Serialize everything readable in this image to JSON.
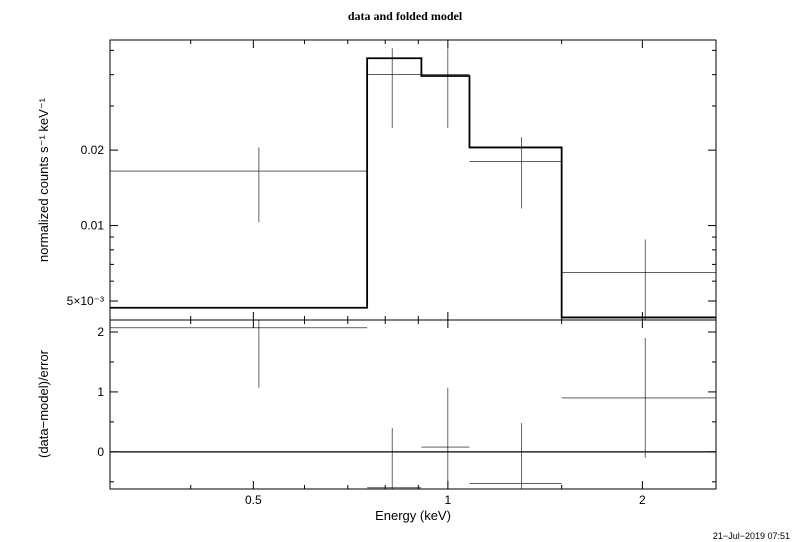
{
  "chart_data": [
    {
      "type": "line",
      "panel": "top",
      "title": "data and folded model",
      "xlabel": "",
      "ylabel": "normalized counts s⁻¹ keV⁻¹",
      "xscale": "log",
      "yscale": "log",
      "xlim": [
        0.3,
        2.6
      ],
      "ylim": [
        0.0042,
        0.055
      ],
      "yticks": [
        {
          "value": 0.005,
          "label": "5×10⁻³"
        },
        {
          "value": 0.01,
          "label": "0.01"
        },
        {
          "value": 0.02,
          "label": "0.02"
        }
      ],
      "series": [
        {
          "style": "data-crosses",
          "points": [
            {
              "x": 0.51,
              "xlo": 0.3,
              "xhi": 0.75,
              "y": 0.0165,
              "ylo": 0.0103,
              "yhi": 0.0205
            },
            {
              "x": 0.82,
              "xlo": 0.75,
              "xhi": 0.91,
              "y": 0.04,
              "ylo": 0.0245,
              "yhi": 0.051
            },
            {
              "x": 1.0,
              "xlo": 0.91,
              "xhi": 1.08,
              "y": 0.04,
              "ylo": 0.0245,
              "yhi": 0.051
            },
            {
              "x": 1.3,
              "xlo": 1.08,
              "xhi": 1.5,
              "y": 0.018,
              "ylo": 0.0117,
              "yhi": 0.0225
            },
            {
              "x": 2.02,
              "xlo": 1.5,
              "xhi": 2.6,
              "y": 0.0065,
              "ylo": 0.0041,
              "yhi": 0.0088
            }
          ]
        },
        {
          "style": "model-step",
          "bins": [
            {
              "xlo": 0.3,
              "xhi": 0.75,
              "y": 0.0047
            },
            {
              "xlo": 0.75,
              "xhi": 0.91,
              "y": 0.0465
            },
            {
              "xlo": 0.91,
              "xhi": 1.08,
              "y": 0.0395
            },
            {
              "xlo": 1.08,
              "xhi": 1.5,
              "y": 0.0205
            },
            {
              "xlo": 1.5,
              "xhi": 2.6,
              "y": 0.0043
            }
          ]
        }
      ]
    },
    {
      "type": "scatter",
      "panel": "bottom",
      "xlabel": "Energy (keV)",
      "ylabel": "(data−model)/error",
      "xscale": "log",
      "xlim": [
        0.3,
        2.6
      ],
      "ylim": [
        -0.62,
        2.2
      ],
      "xticks": [
        {
          "value": 0.5,
          "label": "0.5"
        },
        {
          "value": 1,
          "label": "1"
        },
        {
          "value": 2,
          "label": "2"
        }
      ],
      "yticks": [
        {
          "value": 0,
          "label": "0"
        },
        {
          "value": 1,
          "label": "1"
        },
        {
          "value": 2,
          "label": "2"
        }
      ],
      "zero_line": 0,
      "points": [
        {
          "x": 0.51,
          "xlo": 0.3,
          "xhi": 0.75,
          "y": 2.07,
          "ylo": 1.07,
          "yhi": 2.2
        },
        {
          "x": 0.82,
          "xlo": 0.75,
          "xhi": 0.91,
          "y": -0.6,
          "ylo": -0.62,
          "yhi": 0.4
        },
        {
          "x": 1.0,
          "xlo": 0.91,
          "xhi": 1.08,
          "y": 0.08,
          "ylo": -0.62,
          "yhi": 1.07
        },
        {
          "x": 1.3,
          "xlo": 1.08,
          "xhi": 1.5,
          "y": -0.53,
          "ylo": -0.62,
          "yhi": 0.48
        },
        {
          "x": 2.02,
          "xlo": 1.5,
          "xhi": 2.6,
          "y": 0.9,
          "ylo": -0.1,
          "yhi": 1.9
        }
      ]
    }
  ],
  "timestamp": "21−Jul−2019 07:51"
}
